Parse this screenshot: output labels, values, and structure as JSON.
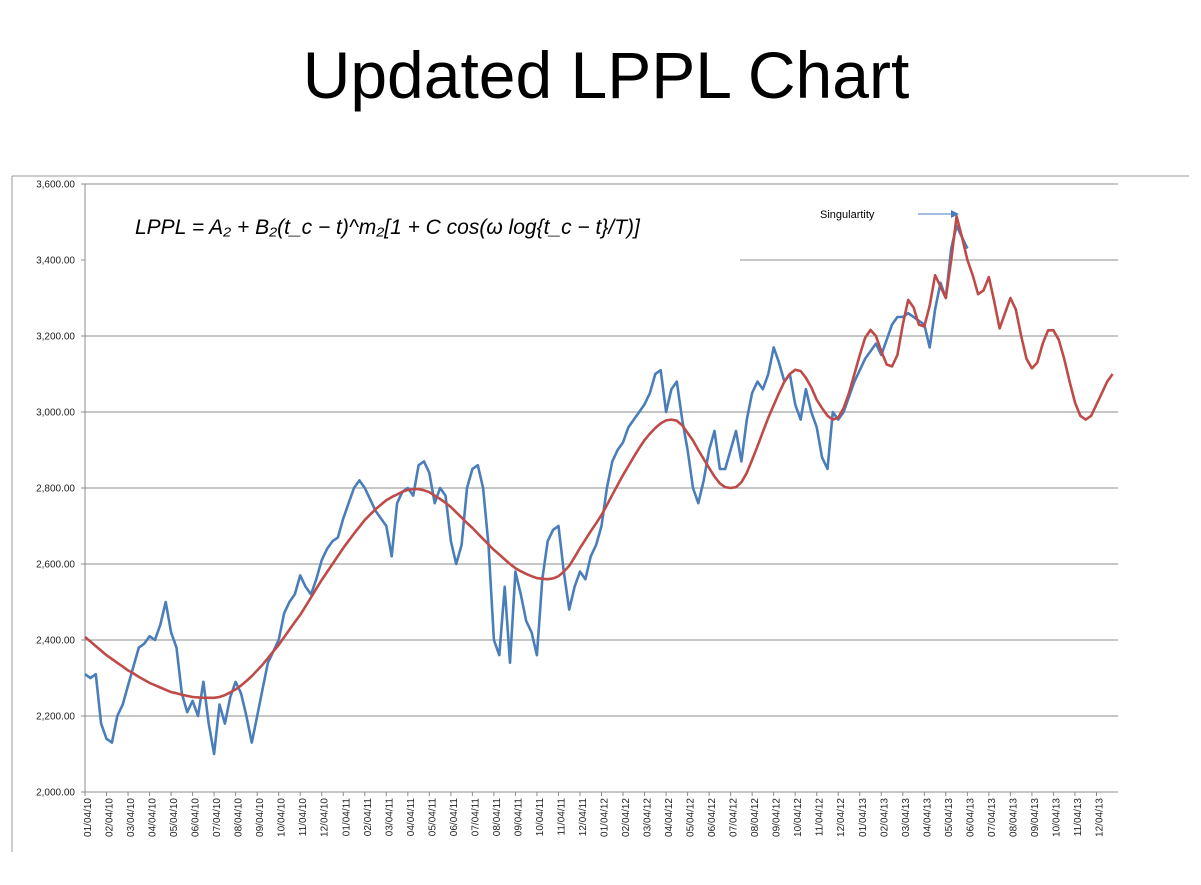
{
  "chart_data": {
    "type": "line",
    "title": "Updated LPPL Chart",
    "formula": "LPPL = A₂ + B₂(t_c − t)^m₂[1 + C cos(ω log{t_c − t}/T)]",
    "annotation": "Singulartity",
    "categories": [
      "01/04/10",
      null,
      null,
      null,
      "02/04/10",
      null,
      null,
      null,
      "03/04/10",
      null,
      null,
      null,
      "04/04/10",
      null,
      null,
      null,
      "05/04/10",
      null,
      null,
      null,
      "06/04/10",
      null,
      null,
      null,
      "07/04/10",
      null,
      null,
      null,
      "08/04/10",
      null,
      null,
      null,
      "09/04/10",
      null,
      null,
      null,
      "10/04/10",
      null,
      null,
      null,
      "11/04/10",
      null,
      null,
      null,
      "12/04/10",
      null,
      null,
      null,
      "01/04/11",
      null,
      null,
      null,
      "02/04/11",
      null,
      null,
      null,
      "03/04/11",
      null,
      null,
      null,
      "04/04/11",
      null,
      null,
      null,
      "05/04/11",
      null,
      null,
      null,
      "06/04/11",
      null,
      null,
      null,
      "07/04/11",
      null,
      null,
      null,
      "08/04/11",
      null,
      null,
      null,
      "09/04/11",
      null,
      null,
      null,
      "10/04/11",
      null,
      null,
      null,
      "11/04/11",
      null,
      null,
      null,
      "12/04/11",
      null,
      null,
      null,
      "01/04/12",
      null,
      null,
      null,
      "02/04/12",
      null,
      null,
      null,
      "03/04/12",
      null,
      null,
      null,
      "04/04/12",
      null,
      null,
      null,
      "05/04/12",
      null,
      null,
      null,
      "06/04/12",
      null,
      null,
      null,
      "07/04/12",
      null,
      null,
      null,
      "08/04/12",
      null,
      null,
      null,
      "09/04/12",
      null,
      null,
      null,
      "10/04/12",
      null,
      null,
      null,
      "11/04/12",
      null,
      null,
      null,
      "12/04/12",
      null,
      null,
      null,
      "01/04/13",
      null,
      null,
      null,
      "02/04/13",
      null,
      null,
      null,
      "03/04/13",
      null,
      null,
      null,
      "04/04/13",
      null,
      null,
      null,
      "05/04/13",
      null,
      null,
      null,
      "06/04/13",
      null,
      null,
      null,
      "07/04/13",
      null,
      null,
      null,
      "08/04/13",
      null,
      null,
      null,
      "09/04/13",
      null,
      null,
      null,
      "10/04/13",
      null,
      null,
      null,
      "11/04/13",
      null,
      null,
      null,
      "12/04/13",
      null,
      null,
      null
    ],
    "series": [
      {
        "color": "#4a7ebb",
        "values": [
          2310,
          2300,
          2310,
          2180,
          2140,
          2130,
          2200,
          2230,
          2280,
          2330,
          2380,
          2390,
          2410,
          2400,
          2440,
          2500,
          2420,
          2380,
          2260,
          2210,
          2240,
          2200,
          2290,
          2180,
          2100,
          2230,
          2180,
          2250,
          2290,
          2260,
          2200,
          2130,
          2200,
          2270,
          2340,
          2370,
          2400,
          2470,
          2500,
          2520,
          2570,
          2540,
          2520,
          2560,
          2610,
          2640,
          2660,
          2670,
          2720,
          2760,
          2800,
          2820,
          2800,
          2770,
          2740,
          2720,
          2700,
          2620,
          2760,
          2790,
          2800,
          2780,
          2860,
          2870,
          2840,
          2760,
          2800,
          2780,
          2660,
          2600,
          2650,
          2800,
          2850,
          2860,
          2800,
          2650,
          2400,
          2360,
          2540,
          2340,
          2580,
          2520,
          2450,
          2420,
          2360,
          2560,
          2660,
          2690,
          2700,
          2580,
          2480,
          2540,
          2580,
          2560,
          2620,
          2650,
          2700,
          2800,
          2870,
          2900,
          2920,
          2960,
          2980,
          3000,
          3020,
          3050,
          3100,
          3110,
          3000,
          3060,
          3080,
          2980,
          2900,
          2800,
          2760,
          2820,
          2900,
          2950,
          2850,
          2850,
          2900,
          2950,
          2870,
          2980,
          3050,
          3080,
          3060,
          3100,
          3170,
          3130,
          3080,
          3100,
          3020,
          2980,
          3060,
          3000,
          2960,
          2880,
          2850,
          3000,
          2980,
          3000,
          3040,
          3080,
          3110,
          3140,
          3160,
          3180,
          3150,
          3190,
          3230,
          3250,
          3250,
          3260,
          3250,
          3240,
          3230,
          3170,
          3270,
          3340,
          3300,
          3430,
          3490,
          3460,
          3430,
          null,
          null,
          null,
          null,
          null,
          null,
          null,
          null,
          null,
          null,
          null,
          null,
          null,
          null,
          null,
          null,
          null,
          null,
          null,
          null,
          null,
          null,
          null,
          null,
          null,
          null,
          null
        ]
      },
      {
        "color": "#be4b48",
        "values": [
          2408,
          2396,
          2384,
          2372,
          2360,
          2350,
          2340,
          2330,
          2320,
          2312,
          2303,
          2295,
          2287,
          2281,
          2275,
          2269,
          2263,
          2260,
          2256,
          2253,
          2250,
          2249,
          2248,
          2248,
          2248,
          2250,
          2255,
          2262,
          2270,
          2280,
          2292,
          2305,
          2320,
          2335,
          2352,
          2370,
          2387,
          2407,
          2427,
          2447,
          2466,
          2489,
          2512,
          2535,
          2558,
          2579,
          2600,
          2621,
          2642,
          2661,
          2680,
          2698,
          2716,
          2730,
          2744,
          2756,
          2768,
          2776,
          2783,
          2790,
          2795,
          2797,
          2797,
          2794,
          2789,
          2780,
          2771,
          2761,
          2750,
          2736,
          2722,
          2708,
          2695,
          2680,
          2666,
          2651,
          2637,
          2625,
          2612,
          2600,
          2589,
          2581,
          2574,
          2568,
          2563,
          2561,
          2560,
          2562,
          2568,
          2580,
          2595,
          2618,
          2642,
          2664,
          2686,
          2707,
          2729,
          2755,
          2782,
          2808,
          2834,
          2858,
          2882,
          2905,
          2926,
          2943,
          2958,
          2970,
          2978,
          2980,
          2977,
          2965,
          2945,
          2925,
          2900,
          2876,
          2853,
          2830,
          2812,
          2802,
          2800,
          2802,
          2815,
          2840,
          2874,
          2910,
          2948,
          2985,
          3018,
          3050,
          3080,
          3100,
          3111,
          3108,
          3090,
          3065,
          3032,
          3010,
          2990,
          2980,
          2985,
          3010,
          3050,
          3100,
          3150,
          3195,
          3216,
          3200,
          3160,
          3125,
          3120,
          3150,
          3230,
          3295,
          3275,
          3230,
          3225,
          3280,
          3360,
          3330,
          3300,
          3400,
          3515,
          3460,
          3400,
          3360,
          3310,
          3320,
          3355,
          3290,
          3220,
          3260,
          3300,
          3270,
          3200,
          3140,
          3115,
          3130,
          3180,
          3215,
          3215,
          3190,
          3140,
          3080,
          3025,
          2990,
          2980,
          2990,
          3020,
          3050,
          3080,
          3100
        ]
      }
    ],
    "ylim": [
      2000,
      3600
    ],
    "yticks": [
      {
        "value": 2000,
        "label": "2,000.00"
      },
      {
        "value": 2200,
        "label": "2,200.00"
      },
      {
        "value": 2400,
        "label": "2,400.00"
      },
      {
        "value": 2600,
        "label": "2,600.00"
      },
      {
        "value": 2800,
        "label": "2,800.00"
      },
      {
        "value": 3000,
        "label": "3,000.00"
      },
      {
        "value": 3200,
        "label": "3,200.00"
      },
      {
        "value": 3400,
        "label": "3,400.00"
      },
      {
        "value": 3600,
        "label": "3,600.00"
      }
    ],
    "grid": true
  }
}
